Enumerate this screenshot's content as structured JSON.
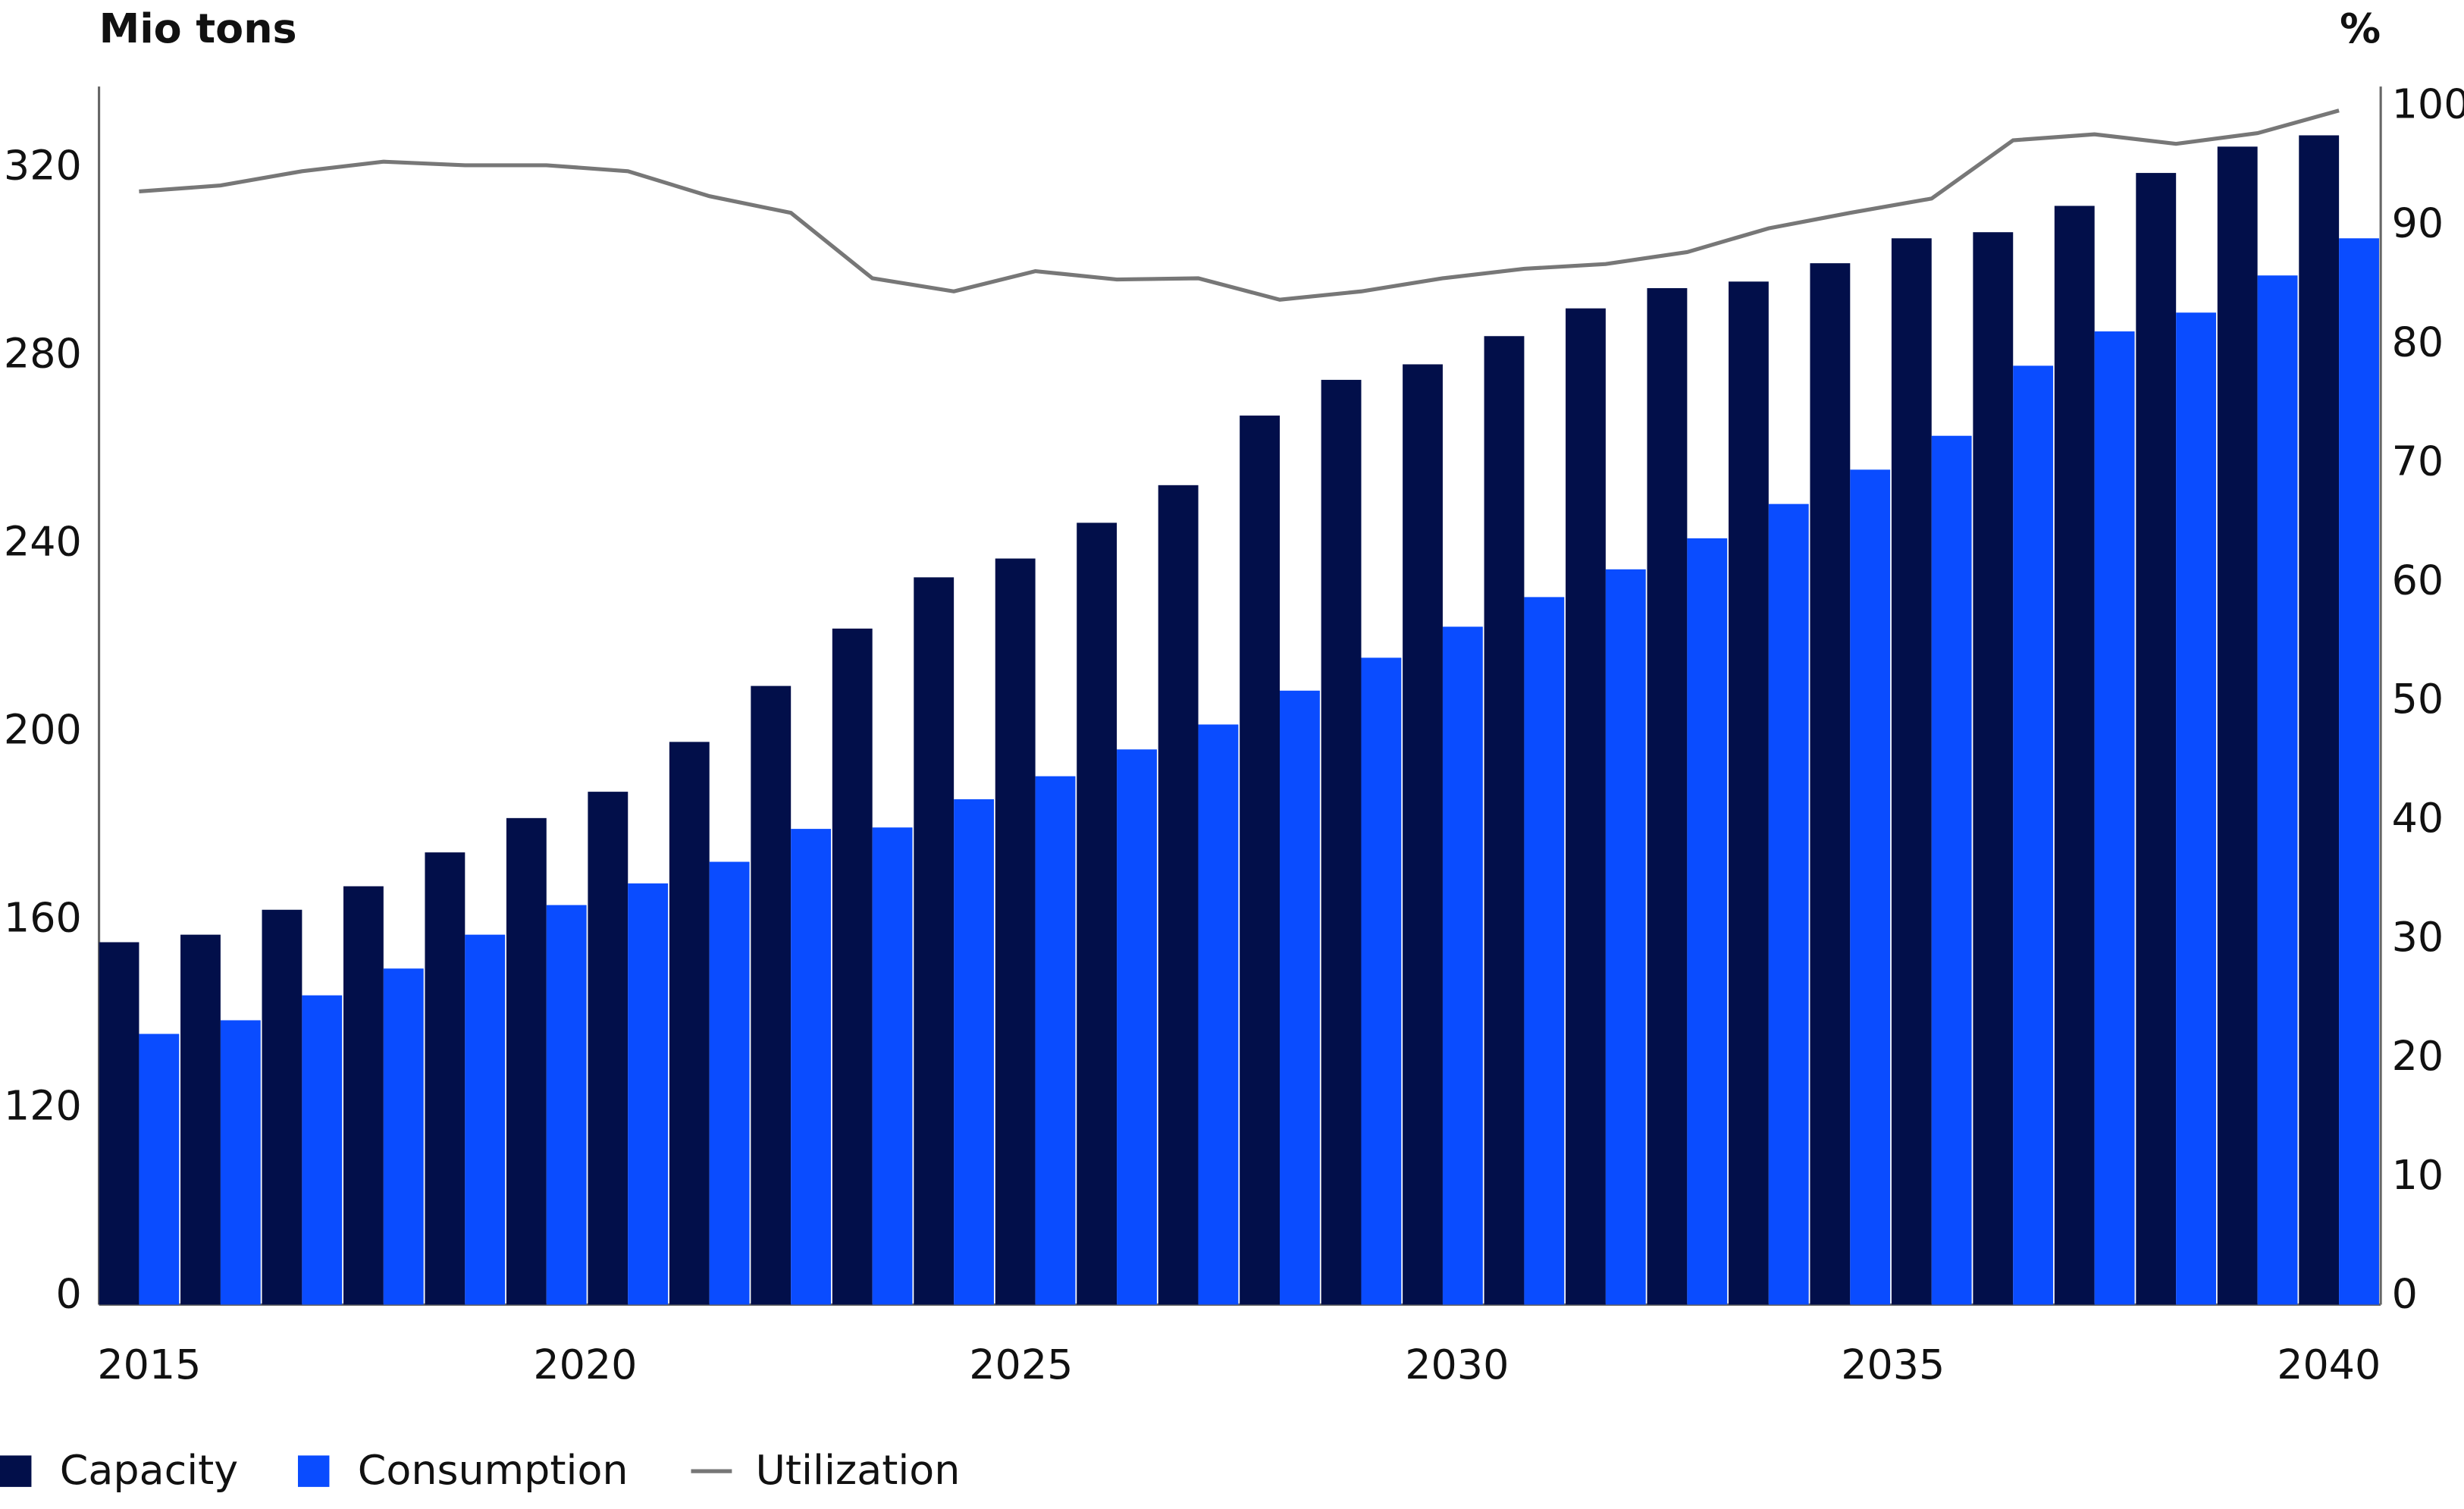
{
  "chart_data": {
    "type": "bar",
    "y_label": "Mio tons",
    "y2_label": "%",
    "xlim": [
      2015,
      2040
    ],
    "xticks": [
      2015,
      2020,
      2025,
      2030,
      2035,
      2040
    ],
    "ylim": [
      0,
      340
    ],
    "yticks": [
      0,
      120,
      160,
      200,
      240,
      280,
      320
    ],
    "y2lim": [
      0,
      100
    ],
    "y2ticks": [
      0,
      10,
      20,
      30,
      40,
      50,
      60,
      70,
      80,
      90,
      100
    ],
    "series": [
      {
        "name": "Capacity",
        "type": "bar",
        "color": "#020f4a",
        "values": [
          155.4,
          157,
          162.3,
          167.3,
          174.5,
          181.8,
          187.4,
          198,
          209.9,
          222.1,
          233,
          237,
          244.6,
          252.6,
          267.4,
          275,
          278.3,
          284.3,
          290.2,
          294.5,
          295.9,
          299.8,
          305.1,
          306.4,
          312,
          319,
          324.6,
          327
        ]
      },
      {
        "name": "Consumption",
        "type": "bar",
        "color": "#0a4cff",
        "values": [
          135.9,
          138.8,
          144.1,
          149.8,
          157,
          163.3,
          167.9,
          172.5,
          179.5,
          179.8,
          185.8,
          190.7,
          196.4,
          201.7,
          208.9,
          215.9,
          222.5,
          228.8,
          234.7,
          241.3,
          248.6,
          255.9,
          263.1,
          278,
          285.3,
          289.3,
          297.2,
          305.1
        ]
      },
      {
        "name": "Utilization",
        "type": "line",
        "axis": "y2",
        "color": "#777777",
        "values": [
          92.9,
          93.4,
          94.6,
          95.4,
          95.1,
          95.1,
          94.6,
          92.5,
          91.1,
          85.6,
          84.5,
          86.2,
          85.5,
          85.6,
          83.8,
          84.5,
          85.6,
          86.4,
          86.8,
          87.8,
          89.8,
          91.1,
          92.3,
          97.2,
          97.7,
          96.9,
          97.8,
          99.7
        ]
      }
    ]
  }
}
